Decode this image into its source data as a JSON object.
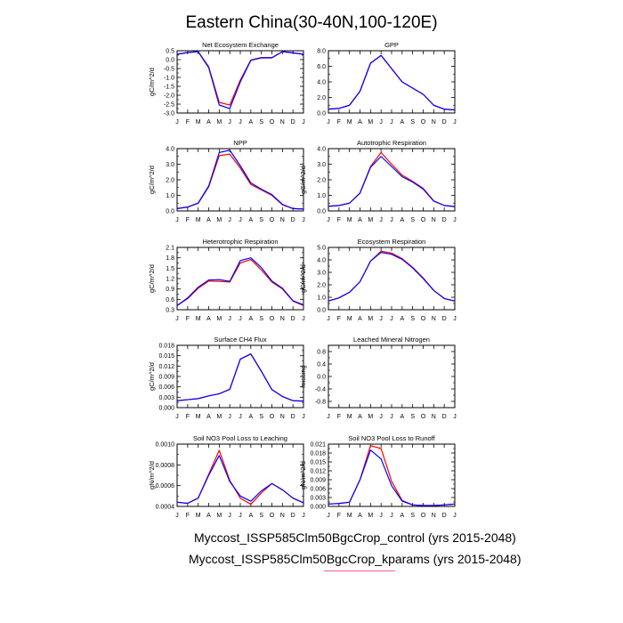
{
  "figure": {
    "title": "Eastern China(30-40N,100-120E)"
  },
  "legend": {
    "line1": "Myccost_ISSP585Clm50BgcCrop_control (yrs 2015-2048)",
    "line2": "Myccost_ISSP585Clm50BgcCrop_kparams (yrs 2015-2048)"
  },
  "colors": {
    "control": "#ff0000",
    "kparams": "#0000ff",
    "underline": "#f06080"
  },
  "chart_data": [
    {
      "type": "line",
      "title": "Net Ecosystem Exchange",
      "ylabel": "gC/m^2/d",
      "categories": [
        "J",
        "F",
        "M",
        "A",
        "M",
        "J",
        "J",
        "A",
        "S",
        "O",
        "N",
        "D",
        "J"
      ],
      "ylim": [
        -3.0,
        0.5
      ],
      "yticks": [
        -3.0,
        -2.5,
        -2.0,
        -1.5,
        -1.0,
        -0.5,
        0.0,
        0.5
      ],
      "ytick_labels": [
        "-3.0",
        "-2.5",
        "-2.0",
        "-1.5",
        "-1.0",
        "-0.5",
        "0.0",
        "0.5"
      ],
      "series": [
        {
          "values": [
            0.3,
            0.4,
            0.45,
            -0.4,
            -2.4,
            -2.55,
            -1.15,
            -0.02,
            0.12,
            0.12,
            0.45,
            0.38,
            0.3
          ]
        },
        {
          "values": [
            0.3,
            0.4,
            0.45,
            -0.45,
            -2.55,
            -2.75,
            -1.25,
            -0.04,
            0.1,
            0.1,
            0.45,
            0.38,
            0.3
          ]
        }
      ]
    },
    {
      "type": "line",
      "title": "GPP",
      "ylabel": "",
      "categories": [
        "J",
        "F",
        "M",
        "A",
        "M",
        "J",
        "J",
        "A",
        "S",
        "O",
        "N",
        "D",
        "J"
      ],
      "ylim": [
        0.0,
        8.0
      ],
      "yticks": [
        0,
        2,
        4,
        6,
        8
      ],
      "ytick_labels": [
        "0.0",
        "2.0",
        "4.0",
        "6.0",
        "8.0"
      ],
      "series": [
        {
          "values": [
            0.5,
            0.6,
            1.0,
            2.8,
            6.4,
            7.4,
            5.7,
            4.0,
            3.2,
            2.4,
            1.0,
            0.5,
            0.4
          ]
        },
        {
          "values": [
            0.5,
            0.6,
            1.0,
            2.8,
            6.4,
            7.4,
            5.7,
            4.0,
            3.2,
            2.4,
            1.0,
            0.5,
            0.4
          ]
        }
      ]
    },
    {
      "type": "line",
      "title": "NPP",
      "ylabel": "gC/m^2/d",
      "categories": [
        "J",
        "F",
        "M",
        "A",
        "M",
        "J",
        "J",
        "A",
        "S",
        "O",
        "N",
        "D",
        "J"
      ],
      "ylim": [
        0.0,
        4.0
      ],
      "yticks": [
        0,
        1,
        2,
        3,
        4
      ],
      "ytick_labels": [
        "0.0",
        "1.0",
        "2.0",
        "3.0",
        "4.0"
      ],
      "series": [
        {
          "values": [
            0.15,
            0.25,
            0.5,
            1.55,
            3.55,
            3.65,
            2.75,
            1.7,
            1.35,
            1.0,
            0.4,
            0.15,
            0.12
          ]
        },
        {
          "values": [
            0.15,
            0.25,
            0.5,
            1.6,
            3.75,
            3.9,
            2.9,
            1.8,
            1.4,
            1.05,
            0.42,
            0.15,
            0.12
          ]
        }
      ]
    },
    {
      "type": "line",
      "title": "Autotrophic Respiration",
      "ylabel": "gC/m^2/d",
      "categories": [
        "J",
        "F",
        "M",
        "A",
        "M",
        "J",
        "J",
        "A",
        "S",
        "O",
        "N",
        "D",
        "J"
      ],
      "ylim": [
        0.0,
        4.0
      ],
      "yticks": [
        0,
        1,
        2,
        3,
        4
      ],
      "ytick_labels": [
        "0.0",
        "1.0",
        "2.0",
        "3.0",
        "4.0"
      ],
      "series": [
        {
          "values": [
            0.3,
            0.35,
            0.5,
            1.15,
            2.85,
            3.75,
            3.0,
            2.3,
            1.9,
            1.45,
            0.65,
            0.35,
            0.28
          ]
        },
        {
          "values": [
            0.3,
            0.35,
            0.5,
            1.15,
            2.8,
            3.5,
            2.85,
            2.2,
            1.85,
            1.4,
            0.63,
            0.35,
            0.28
          ]
        }
      ]
    },
    {
      "type": "line",
      "title": "Heterotrophic Respiration",
      "ylabel": "gC/m^2/d",
      "categories": [
        "J",
        "F",
        "M",
        "A",
        "M",
        "J",
        "J",
        "A",
        "S",
        "O",
        "N",
        "D",
        "J"
      ],
      "ylim": [
        0.3,
        2.1
      ],
      "yticks": [
        0.3,
        0.6,
        0.9,
        1.2,
        1.5,
        1.8,
        2.1
      ],
      "ytick_labels": [
        "0.3",
        "0.6",
        "0.9",
        "1.2",
        "1.5",
        "1.8",
        "2.1"
      ],
      "series": [
        {
          "values": [
            0.42,
            0.62,
            0.92,
            1.13,
            1.12,
            1.1,
            1.65,
            1.75,
            1.45,
            1.1,
            0.9,
            0.55,
            0.42
          ]
        },
        {
          "values": [
            0.42,
            0.64,
            0.95,
            1.16,
            1.17,
            1.12,
            1.72,
            1.8,
            1.52,
            1.13,
            0.92,
            0.56,
            0.44
          ]
        }
      ]
    },
    {
      "type": "line",
      "title": "Ecosystem Respiration",
      "ylabel": "gC/m^2/d",
      "categories": [
        "J",
        "F",
        "M",
        "A",
        "M",
        "J",
        "J",
        "A",
        "S",
        "O",
        "N",
        "D",
        "J"
      ],
      "ylim": [
        0.0,
        5.0
      ],
      "yticks": [
        0,
        1,
        2,
        3,
        4,
        5
      ],
      "ytick_labels": [
        "0.0",
        "1.0",
        "2.0",
        "3.0",
        "4.0",
        "5.0"
      ],
      "series": [
        {
          "values": [
            0.7,
            0.95,
            1.4,
            2.25,
            3.9,
            4.7,
            4.55,
            4.1,
            3.4,
            2.55,
            1.55,
            0.9,
            0.7
          ]
        },
        {
          "values": [
            0.7,
            0.95,
            1.4,
            2.25,
            3.9,
            4.6,
            4.45,
            4.05,
            3.35,
            2.5,
            1.55,
            0.9,
            0.7
          ]
        }
      ]
    },
    {
      "type": "line",
      "title": "Surface CH4 Flux",
      "ylabel": "gC/m^2/d",
      "categories": [
        "J",
        "F",
        "M",
        "A",
        "M",
        "J",
        "J",
        "A",
        "S",
        "O",
        "N",
        "D",
        "J"
      ],
      "ylim": [
        0.0,
        0.018
      ],
      "yticks": [
        0,
        0.003,
        0.006,
        0.009,
        0.012,
        0.015,
        0.018
      ],
      "ytick_labels": [
        "0.000",
        "0.003",
        "0.006",
        "0.009",
        "0.012",
        "0.015",
        "0.018"
      ],
      "series": [
        {
          "values": [
            0.002,
            0.0023,
            0.0026,
            0.0034,
            0.004,
            0.0053,
            0.014,
            0.0155,
            0.0105,
            0.0052,
            0.0032,
            0.002,
            0.0019
          ]
        },
        {
          "values": [
            0.002,
            0.0023,
            0.0026,
            0.0034,
            0.004,
            0.0053,
            0.014,
            0.0155,
            0.0105,
            0.0052,
            0.0032,
            0.002,
            0.0019
          ]
        }
      ]
    },
    {
      "type": "line",
      "title": "Leached Mineral Nitrogen",
      "ylabel": "missing",
      "categories": [
        "J",
        "F",
        "M",
        "A",
        "M",
        "J",
        "J",
        "A",
        "S",
        "O",
        "N",
        "D",
        "J"
      ],
      "ylim": [
        -1.0,
        1.0
      ],
      "yticks": [
        -0.8,
        -0.4,
        0.0,
        0.4,
        0.8
      ],
      "ytick_labels": [
        "-0.8",
        "-0.4",
        "0.0",
        "0.4",
        "0.8"
      ],
      "series": []
    },
    {
      "type": "line",
      "title": "Soil NO3 Pool Loss to Leaching",
      "ylabel": "gN/m^2/d",
      "categories": [
        "J",
        "F",
        "M",
        "A",
        "M",
        "J",
        "J",
        "A",
        "S",
        "O",
        "N",
        "D",
        "J"
      ],
      "ylim": [
        0.0004,
        0.001
      ],
      "yticks": [
        0.0004,
        0.0006,
        0.0008,
        0.001
      ],
      "ytick_labels": [
        "0.0004",
        "0.0006",
        "0.0008",
        "0.0010"
      ],
      "series": [
        {
          "values": [
            0.00044,
            0.00043,
            0.00048,
            0.00071,
            0.00094,
            0.00065,
            0.00048,
            0.00042,
            0.00053,
            0.00062,
            0.00056,
            0.00048,
            0.000435
          ]
        },
        {
          "values": [
            0.00044,
            0.00043,
            0.00048,
            0.0007,
            0.00089,
            0.00064,
            0.0005,
            0.00045,
            0.00055,
            0.00062,
            0.00056,
            0.00048,
            0.000435
          ]
        }
      ]
    },
    {
      "type": "line",
      "title": "Soil NO3 Pool Loss to Runoff",
      "ylabel": "gN/m^2/d",
      "categories": [
        "J",
        "F",
        "M",
        "A",
        "M",
        "J",
        "J",
        "A",
        "S",
        "O",
        "N",
        "D",
        "J"
      ],
      "ylim": [
        0.0,
        0.021
      ],
      "yticks": [
        0,
        0.003,
        0.006,
        0.009,
        0.012,
        0.015,
        0.018,
        0.021
      ],
      "ytick_labels": [
        "0.000",
        "0.003",
        "0.006",
        "0.009",
        "0.012",
        "0.015",
        "0.018",
        "0.021"
      ],
      "series": [
        {
          "values": [
            0.0008,
            0.001,
            0.0014,
            0.009,
            0.0205,
            0.0195,
            0.0085,
            0.002,
            0.0005,
            0.0003,
            0.0003,
            0.0005,
            0.0008
          ]
        },
        {
          "values": [
            0.0008,
            0.001,
            0.0014,
            0.009,
            0.019,
            0.016,
            0.007,
            0.0018,
            0.0005,
            0.0003,
            0.0003,
            0.0005,
            0.0008
          ]
        }
      ]
    }
  ]
}
